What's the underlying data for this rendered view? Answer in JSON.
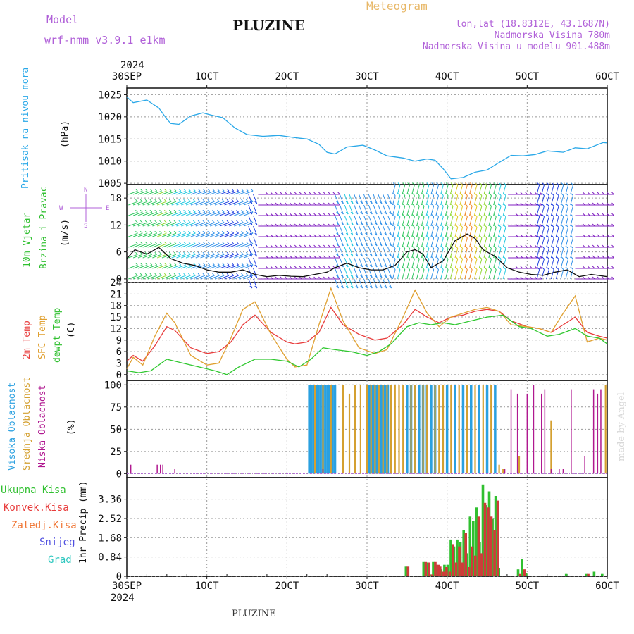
{
  "header": {
    "model_label": "Model",
    "model_value": "wrf-nmm_v3.9.1 e1km",
    "station": "PLUZINE",
    "product": "Meteogram",
    "location": "lon,lat (18.8312E, 43.1687N)",
    "altitude": "Nadmorska Visina 780m",
    "model_altitude": "Nadmorska Visina u modelu 901.488m",
    "footer_station": "PLUZINE",
    "watermark": "made by Angel"
  },
  "colors": {
    "pressure": "#2aa8e8",
    "temp2m": "#e83c3c",
    "sfc": "#e0a030",
    "dewpt": "#30c830",
    "cloud_high": "#2aa0e0",
    "cloud_mid": "#d4a030",
    "cloud_low": "#b01890",
    "precip_total": "#30c030",
    "precip_conv": "#d03a3a",
    "model_purple": "#a050d0",
    "product_orange": "#e8b868"
  },
  "time_axis": {
    "top_year": "2024",
    "bottom_year": "2024",
    "ticks": [
      "30SEP",
      "1OCT",
      "2OCT",
      "3OCT",
      "4OCT",
      "5OCT",
      "6OCT"
    ]
  },
  "panels": {
    "pressure": {
      "ylabel_outer": "Pritisak na nivou mora",
      "unit": "(hPa)"
    },
    "wind": {
      "ylabel_outer_1": "10m Vjetar",
      "ylabel_outer_2": "Brzina i Pravac",
      "unit": "(m/s)",
      "compass": [
        "N",
        "S",
        "W",
        "E"
      ]
    },
    "temp": {
      "ylabel_1": "2m Temp",
      "ylabel_2": "SFC Temp",
      "ylabel_3": "dewpt Temp",
      "unit": "(C)"
    },
    "cloud": {
      "ylabel_1": "Visoka Oblacnost",
      "ylabel_2": "Srednja Oblacnost",
      "ylabel_3": "Niska Oblacnost",
      "unit": "(%)"
    },
    "precip": {
      "legend": [
        "Ukupna Kisa",
        "Konvek.Kisa",
        "Zaledj.Kisa",
        "Snijeg",
        "Grad"
      ],
      "unit": "1hr Precip (mm)"
    }
  },
  "chart_data": [
    {
      "type": "line",
      "title": "",
      "ylabel": "Pritisak na nivou mora (hPa)",
      "ylim": [
        1005,
        1026
      ],
      "yticks": [
        "1005",
        "1010",
        "1015",
        "1020",
        "1025"
      ],
      "series": [
        {
          "name": "Pritisak na nivou mora",
          "x": [
            0,
            0.08,
            0.25,
            0.4,
            0.5,
            0.55,
            0.65,
            0.8,
            0.95,
            1.05,
            1.2,
            1.35,
            1.5,
            1.7,
            1.9,
            2.1,
            2.25,
            2.4,
            2.5,
            2.6,
            2.75,
            2.95,
            3.1,
            3.25,
            3.45,
            3.6,
            3.75,
            3.85,
            3.95,
            4.05,
            4.2,
            4.35,
            4.5,
            4.65,
            4.8,
            4.95,
            5.1,
            5.25,
            5.45,
            5.6,
            5.75,
            5.95,
            6.0
          ],
          "y": [
            1024.5,
            1023.2,
            1023.8,
            1022.0,
            1019.5,
            1018.5,
            1018.3,
            1020.2,
            1020.9,
            1020.4,
            1019.8,
            1017.5,
            1016.0,
            1015.6,
            1015.8,
            1015.3,
            1015.0,
            1013.8,
            1012.0,
            1011.6,
            1013.2,
            1013.6,
            1012.5,
            1011.2,
            1010.7,
            1010.0,
            1010.5,
            1010.2,
            1008.3,
            1006.0,
            1006.3,
            1007.5,
            1008.0,
            1009.7,
            1011.3,
            1011.2,
            1011.5,
            1012.3,
            1012.0,
            1013.0,
            1012.8,
            1014.2,
            1014.1
          ]
        }
      ]
    },
    {
      "type": "line",
      "title": "",
      "ylabel": "10m Vjetar Brzina i Pravac (m/s)",
      "ylim": [
        0,
        20
      ],
      "yticks": [
        "0",
        "6",
        "12",
        "18"
      ],
      "series": [
        {
          "name": "",
          "x": [
            0,
            0.1,
            0.25,
            0.4,
            0.55,
            0.7,
            0.85,
            1.0,
            1.15,
            1.3,
            1.45,
            1.6,
            1.75,
            1.9,
            2.05,
            2.2,
            2.35,
            2.5,
            2.6,
            2.75,
            2.9,
            3.05,
            3.2,
            3.35,
            3.5,
            3.6,
            3.7,
            3.8,
            3.95,
            4.1,
            4.25,
            4.35,
            4.45,
            4.6,
            4.75,
            4.9,
            5.05,
            5.2,
            5.35,
            5.5,
            5.65,
            5.8,
            6.0
          ],
          "y": [
            4.5,
            6.5,
            5.5,
            7.0,
            4.5,
            3.5,
            3.0,
            2.0,
            1.5,
            1.5,
            2.0,
            1.0,
            0.5,
            0.8,
            0.6,
            0.5,
            1.0,
            1.5,
            2.5,
            3.5,
            2.5,
            2.0,
            2.0,
            3.0,
            6.0,
            6.5,
            5.5,
            2.5,
            4.0,
            8.5,
            10.0,
            9.0,
            6.5,
            5.0,
            2.5,
            1.5,
            1.0,
            0.8,
            1.5,
            2.0,
            0.5,
            1.0,
            0.5
          ]
        }
      ]
    },
    {
      "type": "line",
      "title": "",
      "ylabel": "(C)",
      "ylim": [
        -1,
        24
      ],
      "yticks": [
        "0",
        "3",
        "6",
        "9",
        "12",
        "15",
        "18",
        "21",
        "24"
      ],
      "series": [
        {
          "name": "2m Temp",
          "x": [
            0,
            0.08,
            0.2,
            0.35,
            0.5,
            0.6,
            0.8,
            1.0,
            1.15,
            1.3,
            1.45,
            1.6,
            1.8,
            2.0,
            2.1,
            2.25,
            2.4,
            2.55,
            2.7,
            2.9,
            3.1,
            3.25,
            3.45,
            3.6,
            3.75,
            3.9,
            4.05,
            4.2,
            4.35,
            4.5,
            4.65,
            4.8,
            5.0,
            5.15,
            5.3,
            5.45,
            5.6,
            5.75,
            5.9,
            6.0
          ],
          "y": [
            3.5,
            5.0,
            3.5,
            7.5,
            12.5,
            11.5,
            7.0,
            5.5,
            6.0,
            8.5,
            13.0,
            15.5,
            11.0,
            8.5,
            8.0,
            8.5,
            11.0,
            17.5,
            13.0,
            10.5,
            9.0,
            9.5,
            13.0,
            17.0,
            15.0,
            13.5,
            15.0,
            15.5,
            16.5,
            17.0,
            16.5,
            14.0,
            12.5,
            12.0,
            11.0,
            13.0,
            15.0,
            11.0,
            10.0,
            9.5
          ]
        },
        {
          "name": "SFC Temp",
          "x": [
            0,
            0.08,
            0.2,
            0.35,
            0.5,
            0.6,
            0.8,
            1.0,
            1.15,
            1.3,
            1.45,
            1.6,
            1.8,
            2.0,
            2.1,
            2.25,
            2.4,
            2.55,
            2.7,
            2.9,
            3.1,
            3.25,
            3.45,
            3.6,
            3.75,
            3.9,
            4.05,
            4.2,
            4.35,
            4.5,
            4.65,
            4.8,
            5.0,
            5.15,
            5.3,
            5.45,
            5.6,
            5.75,
            5.9,
            6.0
          ],
          "y": [
            1.5,
            4.5,
            2.5,
            10.0,
            16.0,
            13.5,
            5.0,
            2.5,
            3.0,
            9.5,
            17.0,
            19.0,
            10.5,
            4.0,
            2.0,
            2.5,
            13.0,
            22.5,
            14.0,
            7.0,
            5.5,
            6.5,
            15.0,
            22.0,
            16.0,
            12.5,
            15.0,
            16.0,
            17.0,
            17.5,
            16.5,
            13.0,
            12.5,
            12.0,
            11.0,
            16.0,
            20.5,
            8.5,
            9.5,
            9.0
          ]
        },
        {
          "name": "dewpt Temp",
          "x": [
            0,
            0.15,
            0.3,
            0.5,
            0.7,
            0.9,
            1.1,
            1.25,
            1.4,
            1.6,
            1.8,
            2.0,
            2.15,
            2.3,
            2.45,
            2.6,
            2.8,
            3.0,
            3.15,
            3.3,
            3.5,
            3.65,
            3.8,
            3.95,
            4.1,
            4.3,
            4.5,
            4.7,
            4.9,
            5.05,
            5.25,
            5.4,
            5.6,
            5.75,
            5.9,
            6.0
          ],
          "y": [
            1.0,
            0.5,
            1.0,
            4.0,
            3.0,
            2.0,
            1.0,
            0.0,
            2.0,
            4.0,
            4.0,
            3.5,
            2.0,
            4.0,
            7.0,
            6.5,
            6.0,
            5.0,
            6.0,
            8.0,
            12.5,
            13.5,
            13.0,
            13.5,
            13.0,
            14.0,
            15.0,
            15.5,
            12.5,
            12.0,
            10.0,
            10.5,
            12.0,
            10.0,
            9.5,
            8.0
          ]
        }
      ]
    },
    {
      "type": "bar",
      "title": "",
      "ylabel": "(%)",
      "ylim": [
        0,
        100
      ],
      "yticks": [
        "0",
        "25",
        "50",
        "75",
        "100"
      ],
      "series": [
        {
          "name": "Visoka Oblacnost",
          "note": "",
          "x": [
            2.28,
            2.3,
            2.33,
            2.36,
            2.39,
            2.42,
            2.45,
            2.48,
            2.51,
            2.54,
            2.57,
            2.6,
            3.0,
            3.02,
            3.04,
            3.06,
            3.08,
            3.1,
            3.12,
            3.14,
            3.16,
            3.18,
            3.2,
            3.22,
            3.24,
            3.26,
            3.5,
            3.55,
            3.6,
            3.65,
            3.7,
            3.75,
            3.8,
            3.85,
            4.0,
            4.1,
            4.2,
            4.3,
            4.4,
            4.5,
            4.6
          ],
          "y": [
            100,
            100,
            100,
            100,
            100,
            100,
            100,
            100,
            100,
            100,
            100,
            100,
            100,
            100,
            100,
            100,
            100,
            100,
            100,
            100,
            100,
            100,
            100,
            100,
            100,
            100,
            100,
            100,
            100,
            100,
            100,
            100,
            100,
            100,
            100,
            100,
            100,
            100,
            100,
            100,
            100
          ]
        },
        {
          "name": "Srednja Oblacnost",
          "note": "",
          "x": [
            2.35,
            2.45,
            2.55,
            2.7,
            2.78,
            2.85,
            2.92,
            3.0,
            3.05,
            3.1,
            3.15,
            3.2,
            3.25,
            3.3,
            3.35,
            3.4,
            3.45,
            3.55,
            3.6,
            3.7,
            3.75,
            3.85,
            3.9,
            3.95,
            4.05,
            4.15,
            4.25,
            4.35,
            4.45,
            4.55,
            4.65,
            4.7,
            4.9,
            5.3,
            5.98
          ],
          "y": [
            100,
            100,
            100,
            100,
            90,
            100,
            100,
            100,
            100,
            100,
            100,
            100,
            100,
            100,
            100,
            100,
            100,
            100,
            100,
            100,
            100,
            100,
            100,
            100,
            100,
            100,
            100,
            100,
            100,
            100,
            10,
            5,
            20,
            60,
            100
          ]
        },
        {
          "name": "Niska Oblacnost",
          "note": "",
          "x": [
            0.05,
            0.38,
            0.42,
            0.45,
            0.6,
            2.45,
            4.72,
            4.8,
            4.88,
            5.0,
            5.08,
            5.18,
            5.22,
            5.3,
            5.4,
            5.45,
            5.55,
            5.72,
            5.83,
            5.88,
            5.92
          ],
          "y": [
            10,
            10,
            10,
            10,
            5,
            5,
            5,
            95,
            90,
            90,
            100,
            90,
            95,
            5,
            5,
            5,
            95,
            20,
            95,
            90,
            95
          ]
        }
      ]
    },
    {
      "type": "bar",
      "title": "",
      "ylabel": "1hr Precip (mm)",
      "ylim": [
        0,
        4.3
      ],
      "yticks": [
        "0",
        "0.84",
        "1.68",
        "2.52",
        "3.36"
      ],
      "categories_x": [
        3.5,
        3.72,
        3.76,
        3.8,
        3.84,
        3.88,
        3.9,
        3.94,
        3.98,
        4.02,
        4.06,
        4.1,
        4.14,
        4.18,
        4.22,
        4.26,
        4.3,
        4.34,
        4.38,
        4.42,
        4.46,
        4.5,
        4.54,
        4.58,
        4.62,
        4.66,
        4.9,
        4.95,
        5.0,
        5.5,
        5.75,
        5.85,
        5.95
      ],
      "series": [
        {
          "name": "Ukupna Kisa",
          "values": [
            0.42,
            0.62,
            0.6,
            0.08,
            0.62,
            0.5,
            0.42,
            0.3,
            0.5,
            0.5,
            1.6,
            1.3,
            1.6,
            1.5,
            2.0,
            1.0,
            2.6,
            2.4,
            3.0,
            1.5,
            4.0,
            3.1,
            3.7,
            2.5,
            3.5,
            0.35,
            0.3,
            0.75,
            0.15,
            0.1,
            0.1,
            0.2,
            0.1
          ]
        },
        {
          "name": "Konvek.Kisa",
          "values": [
            0.42,
            0.62,
            0.6,
            0.08,
            0.62,
            0.5,
            0.42,
            0.2,
            0.4,
            0.2,
            1.4,
            0.6,
            1.3,
            0.6,
            1.9,
            0.4,
            1.3,
            0.9,
            2.6,
            1.0,
            3.2,
            3.0,
            2.6,
            2.0,
            3.3,
            0.0,
            0.1,
            0.3,
            0.0,
            0.0,
            0.1,
            0.0,
            0.0
          ]
        }
      ]
    }
  ]
}
